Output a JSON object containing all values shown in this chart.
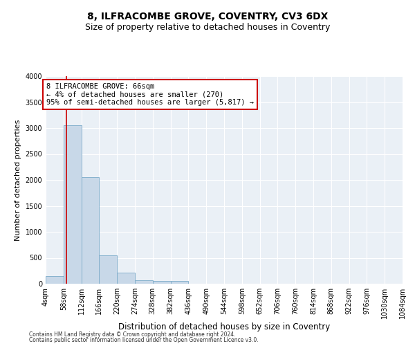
{
  "title": "8, ILFRACOMBE GROVE, COVENTRY, CV3 6DX",
  "subtitle": "Size of property relative to detached houses in Coventry",
  "xlabel": "Distribution of detached houses by size in Coventry",
  "ylabel": "Number of detached properties",
  "bin_edges": [
    4,
    58,
    112,
    166,
    220,
    274,
    328,
    382,
    436,
    490,
    544,
    598,
    652,
    706,
    760,
    814,
    868,
    922,
    976,
    1030,
    1084
  ],
  "bar_heights": [
    150,
    3050,
    2060,
    550,
    220,
    70,
    50,
    50,
    0,
    0,
    0,
    0,
    0,
    0,
    0,
    0,
    0,
    0,
    0,
    0
  ],
  "bar_color": "#c8d8e8",
  "bar_edge_color": "#7aaac8",
  "vline_x": 66,
  "vline_color": "#cc0000",
  "annotation_text": "8 ILFRACOMBE GROVE: 66sqm\n← 4% of detached houses are smaller (270)\n95% of semi-detached houses are larger (5,817) →",
  "annotation_box_color": "#cc0000",
  "ylim": [
    0,
    4000
  ],
  "yticks": [
    0,
    500,
    1000,
    1500,
    2000,
    2500,
    3000,
    3500,
    4000
  ],
  "bg_color": "#eaf0f6",
  "grid_color": "#ffffff",
  "footer_line1": "Contains HM Land Registry data © Crown copyright and database right 2024.",
  "footer_line2": "Contains public sector information licensed under the Open Government Licence v3.0.",
  "title_fontsize": 10,
  "subtitle_fontsize": 9,
  "tick_label_fontsize": 7,
  "ylabel_fontsize": 8,
  "xlabel_fontsize": 8.5,
  "annotation_fontsize": 7.5,
  "footer_fontsize": 5.5
}
